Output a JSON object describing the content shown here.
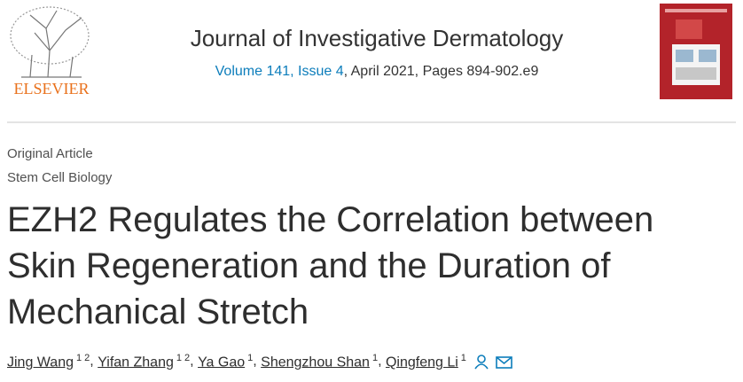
{
  "header": {
    "publisher": "ELSEVIER",
    "journal": "Journal of Investigative Dermatology",
    "volume_issue": "Volume 141, Issue 4",
    "date_pages": ", April 2021, Pages 894-902.e9"
  },
  "article": {
    "type": "Original Article",
    "section": "Stem Cell Biology",
    "title": "EZH2 Regulates the Correlation between Skin Regeneration and the Duration of Mechanical Stretch",
    "author_separator": ", ",
    "authors": [
      {
        "name": "Jing Wang",
        "affiliations": "1 2"
      },
      {
        "name": "Yifan Zhang",
        "affiliations": "1 2"
      },
      {
        "name": "Ya Gao",
        "affiliations": "1"
      },
      {
        "name": "Shengzhou Shan",
        "affiliations": "1"
      },
      {
        "name": "Qingfeng Li",
        "affiliations": "1"
      }
    ]
  }
}
